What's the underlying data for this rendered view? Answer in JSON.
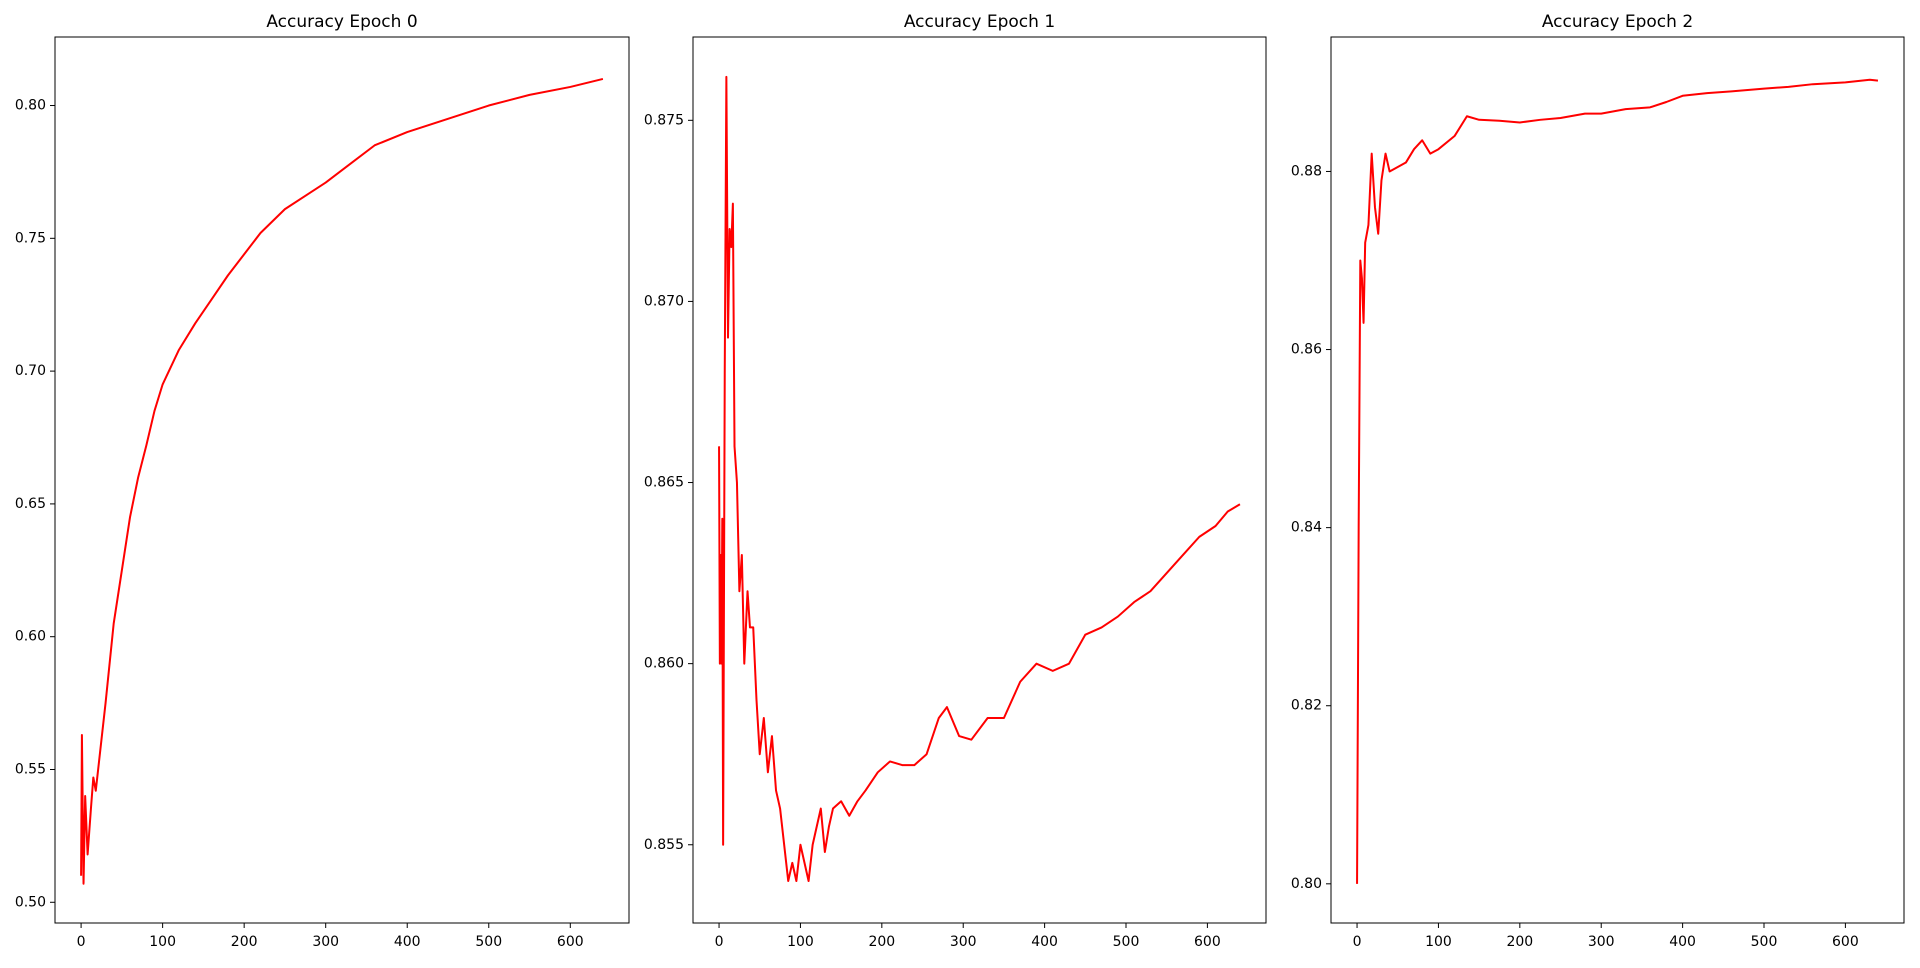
{
  "chart_data": [
    {
      "type": "line",
      "title": "Accuracy Epoch 0",
      "color": "#ff0000",
      "x": [
        0,
        1,
        3,
        5,
        8,
        12,
        15,
        18,
        22,
        30,
        40,
        50,
        60,
        70,
        80,
        90,
        100,
        120,
        140,
        160,
        180,
        200,
        220,
        250,
        280,
        300,
        330,
        360,
        400,
        450,
        500,
        550,
        600,
        640
      ],
      "values": [
        0.51,
        0.563,
        0.507,
        0.54,
        0.518,
        0.535,
        0.547,
        0.542,
        0.553,
        0.575,
        0.605,
        0.625,
        0.645,
        0.66,
        0.672,
        0.685,
        0.695,
        0.708,
        0.718,
        0.727,
        0.736,
        0.744,
        0.752,
        0.761,
        0.767,
        0.771,
        0.778,
        0.785,
        0.79,
        0.795,
        0.8,
        0.804,
        0.807,
        0.81
      ],
      "xlim": [
        -32,
        672
      ],
      "xticks": [
        0,
        100,
        200,
        300,
        400,
        500,
        600
      ],
      "ylim": [
        0.4922,
        0.8258
      ],
      "yticks": [
        {
          "value": 0.5,
          "label": "0.50"
        },
        0.55,
        {
          "value": 0.6,
          "label": "0.60"
        },
        0.65,
        {
          "value": 0.7,
          "label": "0.70"
        },
        0.75,
        {
          "value": 0.8,
          "label": "0.80"
        }
      ]
    },
    {
      "type": "line",
      "title": "Accuracy Epoch 1",
      "color": "#ff0000",
      "x": [
        0,
        1,
        2,
        3,
        4,
        5,
        7,
        9,
        11,
        13,
        15,
        17,
        19,
        22,
        25,
        28,
        31,
        35,
        38,
        42,
        46,
        50,
        55,
        60,
        65,
        70,
        75,
        80,
        85,
        90,
        95,
        100,
        105,
        110,
        115,
        120,
        125,
        130,
        135,
        140,
        150,
        160,
        170,
        180,
        195,
        210,
        225,
        240,
        255,
        270,
        280,
        295,
        310,
        330,
        350,
        370,
        390,
        410,
        430,
        450,
        470,
        490,
        510,
        530,
        550,
        570,
        590,
        610,
        625,
        640
      ],
      "values": [
        0.866,
        0.86,
        0.863,
        0.86,
        0.864,
        0.855,
        0.868,
        0.8762,
        0.869,
        0.872,
        0.8715,
        0.8727,
        0.866,
        0.865,
        0.862,
        0.863,
        0.86,
        0.862,
        0.861,
        0.861,
        0.859,
        0.8575,
        0.8585,
        0.857,
        0.858,
        0.8565,
        0.856,
        0.855,
        0.854,
        0.8545,
        0.854,
        0.855,
        0.8545,
        0.854,
        0.855,
        0.8555,
        0.856,
        0.8548,
        0.8555,
        0.856,
        0.8562,
        0.8558,
        0.8562,
        0.8565,
        0.857,
        0.8573,
        0.8572,
        0.8572,
        0.8575,
        0.8585,
        0.8588,
        0.858,
        0.8579,
        0.8585,
        0.8585,
        0.8595,
        0.86,
        0.8598,
        0.86,
        0.8608,
        0.861,
        0.8613,
        0.8617,
        0.862,
        0.8625,
        0.863,
        0.8635,
        0.8638,
        0.8642,
        0.8644
      ],
      "xlim": [
        -32,
        672
      ],
      "xticks": [
        0,
        100,
        200,
        300,
        400,
        500,
        600
      ],
      "ylim": [
        0.85284,
        0.8773
      ],
      "yticks": [
        0.855,
        {
          "value": 0.86,
          "label": "0.860"
        },
        0.865,
        {
          "value": 0.87,
          "label": "0.870"
        },
        0.875
      ]
    },
    {
      "type": "line",
      "title": "Accuracy Epoch 2",
      "color": "#ff0000",
      "x": [
        0,
        2,
        4,
        6,
        8,
        10,
        14,
        18,
        22,
        26,
        30,
        35,
        40,
        50,
        60,
        70,
        80,
        90,
        100,
        120,
        135,
        150,
        175,
        200,
        225,
        250,
        280,
        300,
        330,
        360,
        380,
        400,
        430,
        460,
        500,
        530,
        560,
        600,
        630,
        640
      ],
      "values": [
        0.8,
        0.84,
        0.87,
        0.868,
        0.863,
        0.872,
        0.874,
        0.882,
        0.876,
        0.873,
        0.879,
        0.882,
        0.88,
        0.8805,
        0.881,
        0.8825,
        0.8835,
        0.882,
        0.8825,
        0.884,
        0.8862,
        0.8858,
        0.8857,
        0.8855,
        0.8858,
        0.886,
        0.8865,
        0.8865,
        0.887,
        0.8872,
        0.8878,
        0.8885,
        0.8888,
        0.889,
        0.8893,
        0.8895,
        0.8898,
        0.89,
        0.8903,
        0.8902
      ],
      "xlim": [
        -32,
        672
      ],
      "xticks": [
        0,
        100,
        200,
        300,
        400,
        500,
        600
      ],
      "ylim": [
        0.7956,
        0.8951
      ],
      "yticks": [
        {
          "value": 0.8,
          "label": "0.80"
        },
        0.82,
        0.84,
        0.86,
        0.88
      ]
    }
  ]
}
